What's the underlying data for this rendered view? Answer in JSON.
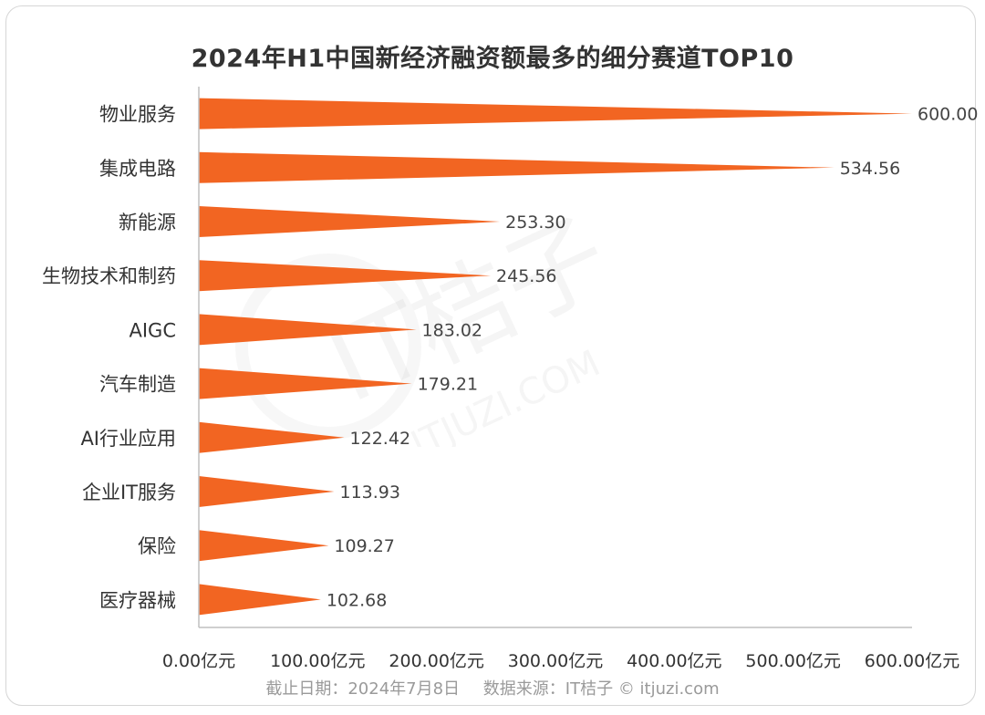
{
  "title": "2024年H1中国新经济融资额最多的细分赛道TOP10",
  "footer": {
    "date_text": "截止日期：2024年7月8日",
    "source_text": "数据来源：IT桔子 © itjuzi.com"
  },
  "watermark": {
    "main_text": "IT桔子",
    "sub_text": "ITJUZI.COM"
  },
  "colors": {
    "bar": "#f26522",
    "axis": "#bfbfbf",
    "label": "#333333",
    "value": "#444444"
  },
  "chart_data": {
    "type": "bar",
    "orientation": "horizontal",
    "mark_shape": "triangle",
    "title": "2024年H1中国新经济融资额最多的细分赛道TOP10",
    "categories": [
      "物业服务",
      "集成电路",
      "新能源",
      "生物技术和制药",
      "AIGC",
      "汽车制造",
      "AI行业应用",
      "企业IT服务",
      "保险",
      "医疗器械"
    ],
    "values": [
      600.0,
      534.56,
      253.3,
      245.56,
      183.02,
      179.21,
      122.42,
      113.93,
      109.27,
      102.68
    ],
    "value_labels": [
      "600.00",
      "534.56",
      "253.30",
      "245.56",
      "183.02",
      "179.21",
      "122.42",
      "113.93",
      "109.27",
      "102.68"
    ],
    "xlim": [
      0,
      600
    ],
    "x_ticks": [
      0,
      100,
      200,
      300,
      400,
      500,
      600
    ],
    "x_tick_labels": [
      "0.00亿元",
      "100.00亿元",
      "200.00亿元",
      "300.00亿元",
      "400.00亿元",
      "500.00亿元",
      "600.00亿元"
    ],
    "xlabel": "",
    "ylabel": "",
    "grid": false,
    "legend": "none"
  }
}
